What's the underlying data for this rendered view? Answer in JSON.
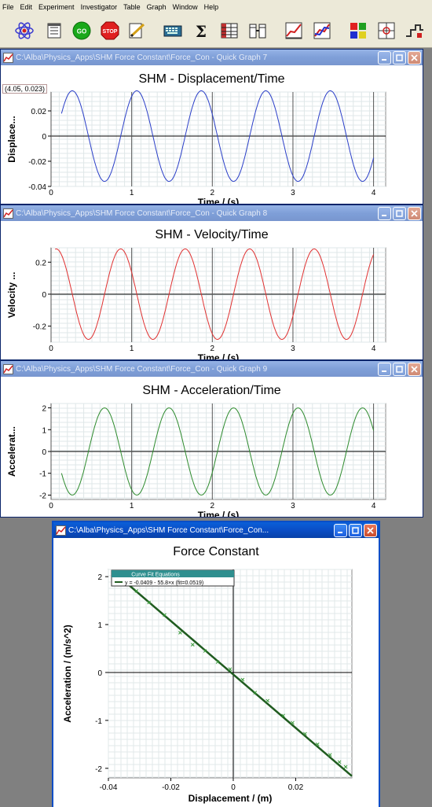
{
  "menu": [
    "File",
    "Edit",
    "Experiment",
    "Investigator",
    "Table",
    "Graph",
    "Window",
    "Help"
  ],
  "toolbar_buttons": [
    "atom-icon",
    "notes-icon",
    "go-icon",
    "stop-icon",
    "edit-icon",
    "keyboard-icon",
    "sigma-icon",
    "table-icon",
    "columns-icon",
    "line-graph-icon",
    "multi-graph-icon",
    "colors-icon",
    "crosshair-icon",
    "signal-icon"
  ],
  "windows": {
    "graph7": {
      "title": "C:\\Alba\\Physics_Apps\\SHM Force Constant\\Force_Con - Quick Graph 7",
      "coord": "(4.05, 0.023)"
    },
    "graph8": {
      "title": "C:\\Alba\\Physics_Apps\\SHM Force Constant\\Force_Con - Quick Graph 8"
    },
    "graph9": {
      "title": "C:\\Alba\\Physics_Apps\\SHM Force Constant\\Force_Con - Quick Graph 9"
    },
    "force": {
      "title": "C:\\Alba\\Physics_Apps\\SHM Force Constant\\Force_Con..."
    }
  },
  "colors": {
    "displacement": "#2a3ec8",
    "velocity": "#e03030",
    "acceleration": "#2e8b2e",
    "fit": "#1f5b1f",
    "points": "#3a9a3a"
  },
  "chart_data": [
    {
      "type": "line",
      "title": "SHM - Displacement/Time",
      "xlabel": "Time / (s)",
      "ylabel": "Displace...",
      "xlim": [
        0,
        4.15
      ],
      "ylim": [
        -0.04,
        0.035
      ],
      "xticks": [
        "0",
        "1",
        "2",
        "3",
        "4"
      ],
      "yticks": [
        "0.02",
        "0",
        "-0.02",
        "-0.04"
      ],
      "series": [
        {
          "func": "disp",
          "x_range": [
            0.13,
            4.0
          ]
        }
      ]
    },
    {
      "type": "line",
      "title": "SHM - Velocity/Time",
      "xlabel": "Time / (s)",
      "ylabel": "Velocity ...",
      "xlim": [
        0,
        4.15
      ],
      "ylim": [
        -0.3,
        0.29
      ],
      "xticks": [
        "0",
        "1",
        "2",
        "3",
        "4"
      ],
      "yticks": [
        "0.2",
        "0",
        "-0.2"
      ],
      "series": [
        {
          "func": "vel",
          "x_range": [
            0.05,
            4.0
          ]
        }
      ]
    },
    {
      "type": "line",
      "title": "SHM - Acceleration/Time",
      "xlabel": "Time / (s)",
      "ylabel": "Accelerat...",
      "xlim": [
        0,
        4.15
      ],
      "ylim": [
        -2.2,
        2.2
      ],
      "xticks": [
        "0",
        "1",
        "2",
        "3",
        "4"
      ],
      "yticks": [
        "2",
        "1",
        "0",
        "-1",
        "-2"
      ],
      "series": [
        {
          "func": "acc",
          "x_range": [
            0.13,
            4.0
          ]
        }
      ]
    },
    {
      "type": "scatter",
      "title": "Force Constant",
      "xlabel": "Displacement / (m)",
      "ylabel": "Acceleration / (m/s^2)",
      "xlim": [
        -0.04,
        0.038
      ],
      "ylim": [
        -2.2,
        2.15
      ],
      "xticks": [
        "-0.04",
        "-0.02",
        "0",
        "0.02"
      ],
      "yticks": [
        "2",
        "1",
        "0",
        "-1",
        "-2"
      ],
      "legend_title": "Curve Fit Equations",
      "fit_label": "y = -0.0409 - 55.8×x (fit=0.0519)",
      "fit": {
        "intercept": -0.0409,
        "slope": -55.8
      },
      "points": [
        [
          -0.035,
          1.93
        ],
        [
          -0.031,
          1.7
        ],
        [
          -0.027,
          1.46
        ],
        [
          -0.022,
          1.2
        ],
        [
          -0.017,
          0.83
        ],
        [
          -0.013,
          0.58
        ],
        [
          -0.009,
          0.45
        ],
        [
          -0.005,
          0.22
        ],
        [
          -0.001,
          0.07
        ],
        [
          0.003,
          -0.15
        ],
        [
          0.007,
          -0.42
        ],
        [
          0.011,
          -0.59
        ],
        [
          0.016,
          -0.9
        ],
        [
          0.019,
          -1.05
        ],
        [
          0.023,
          -1.28
        ],
        [
          0.027,
          -1.5
        ],
        [
          0.031,
          -1.72
        ],
        [
          0.034,
          -1.87
        ],
        [
          0.036,
          -1.97
        ]
      ]
    }
  ]
}
